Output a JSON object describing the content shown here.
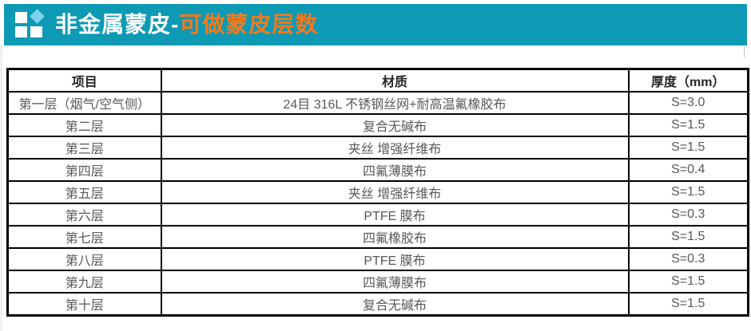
{
  "colors": {
    "teal_bar": "#0e9ab4",
    "orange_accent": "#f2791d",
    "icon_diamond": "#7ed3f0",
    "icon_square": "#ffffff",
    "header_text": "#262626",
    "cell_text": "#595959",
    "table_border": "#000000"
  },
  "header": {
    "title_white": "非金属蒙皮-",
    "title_orange": "可做蒙皮层数",
    "icon": "grid-of-squares-with-diamond"
  },
  "table": {
    "columns": [
      "项目",
      "材质",
      "厚度（mm）"
    ],
    "rows": [
      {
        "layer": "第一层（烟气/空气侧）",
        "material": "24目 316L 不锈钢丝网+耐高温氟橡胶布",
        "thickness": "S=3.0"
      },
      {
        "layer": "第二层",
        "material": "复合无碱布",
        "thickness": "S=1.5"
      },
      {
        "layer": "第三层",
        "material": "夹丝 增强纤维布",
        "thickness": "S=1.5"
      },
      {
        "layer": "第四层",
        "material": "四氟薄膜布",
        "thickness": "S=0.4"
      },
      {
        "layer": "第五层",
        "material": "夹丝 增强纤维布",
        "thickness": "S=1.5"
      },
      {
        "layer": "第六层",
        "material": "PTFE 膜布",
        "thickness": "S=0.3"
      },
      {
        "layer": "第七层",
        "material": "四氟橡胶布",
        "thickness": "S=1.5"
      },
      {
        "layer": "第八层",
        "material": "PTFE 膜布",
        "thickness": "S=0.3"
      },
      {
        "layer": "第九层",
        "material": "四氟薄膜布",
        "thickness": "S=1.5"
      },
      {
        "layer": "第十层",
        "material": "复合无碱布",
        "thickness": "S=1.5"
      }
    ]
  }
}
